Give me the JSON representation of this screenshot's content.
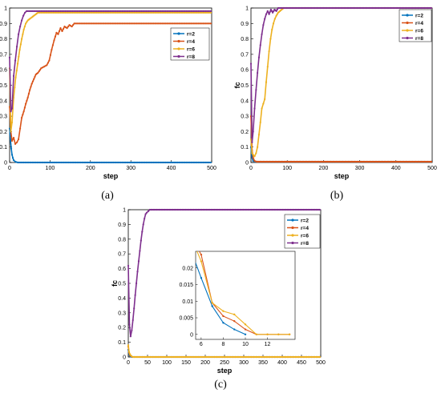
{
  "colors": {
    "r2": "#0072BD",
    "r4": "#D95319",
    "r6": "#EDB120",
    "r8": "#7E2F8E"
  },
  "chart_data": [
    {
      "panel": "(a)",
      "type": "line",
      "xlabel": "step",
      "ylabel": "fc",
      "xlim": [
        0,
        500
      ],
      "ylim": [
        0,
        1
      ],
      "xticks": [
        0,
        100,
        200,
        300,
        400,
        500
      ],
      "yticks": [
        0,
        0.1,
        0.2,
        0.3,
        0.4,
        0.5,
        0.6,
        0.7,
        0.8,
        0.9,
        1
      ],
      "legend": "top-right",
      "series": [
        {
          "name": "r=2",
          "color": "r2",
          "points": [
            [
              0,
              0.22
            ],
            [
              2,
              0.15
            ],
            [
              4,
              0.09
            ],
            [
              6,
              0.05
            ],
            [
              8,
              0.03
            ],
            [
              10,
              0.015
            ],
            [
              14,
              0.005
            ],
            [
              20,
              0
            ],
            [
              500,
              0
            ]
          ]
        },
        {
          "name": "r=4",
          "color": "r4",
          "points": [
            [
              0,
              0.36
            ],
            [
              3,
              0.2
            ],
            [
              6,
              0.14
            ],
            [
              10,
              0.16
            ],
            [
              14,
              0.12
            ],
            [
              18,
              0.13
            ],
            [
              22,
              0.15
            ],
            [
              26,
              0.22
            ],
            [
              30,
              0.29
            ],
            [
              35,
              0.33
            ],
            [
              40,
              0.38
            ],
            [
              45,
              0.42
            ],
            [
              50,
              0.47
            ],
            [
              55,
              0.51
            ],
            [
              60,
              0.54
            ],
            [
              65,
              0.57
            ],
            [
              70,
              0.58
            ],
            [
              78,
              0.61
            ],
            [
              85,
              0.62
            ],
            [
              92,
              0.63
            ],
            [
              98,
              0.66
            ],
            [
              104,
              0.73
            ],
            [
              110,
              0.79
            ],
            [
              116,
              0.84
            ],
            [
              120,
              0.83
            ],
            [
              126,
              0.87
            ],
            [
              130,
              0.85
            ],
            [
              136,
              0.88
            ],
            [
              142,
              0.87
            ],
            [
              148,
              0.89
            ],
            [
              154,
              0.88
            ],
            [
              160,
              0.9
            ],
            [
              165,
              0.9
            ],
            [
              500,
              0.9
            ]
          ]
        },
        {
          "name": "r=6",
          "color": "r6",
          "points": [
            [
              0,
              0.61
            ],
            [
              3,
              0.2
            ],
            [
              6,
              0.26
            ],
            [
              10,
              0.42
            ],
            [
              15,
              0.55
            ],
            [
              20,
              0.64
            ],
            [
              25,
              0.73
            ],
            [
              30,
              0.8
            ],
            [
              35,
              0.86
            ],
            [
              40,
              0.9
            ],
            [
              45,
              0.92
            ],
            [
              50,
              0.93
            ],
            [
              55,
              0.94
            ],
            [
              60,
              0.95
            ],
            [
              65,
              0.96
            ],
            [
              70,
              0.97
            ],
            [
              75,
              0.97
            ],
            [
              500,
              0.97
            ]
          ]
        },
        {
          "name": "r=8",
          "color": "r8",
          "points": [
            [
              0,
              0.68
            ],
            [
              3,
              0.33
            ],
            [
              6,
              0.35
            ],
            [
              10,
              0.56
            ],
            [
              14,
              0.66
            ],
            [
              18,
              0.75
            ],
            [
              22,
              0.83
            ],
            [
              26,
              0.88
            ],
            [
              30,
              0.92
            ],
            [
              34,
              0.95
            ],
            [
              38,
              0.97
            ],
            [
              42,
              0.98
            ],
            [
              500,
              0.98
            ]
          ]
        }
      ]
    },
    {
      "panel": "(b)",
      "type": "line",
      "xlabel": "step",
      "ylabel": "fc",
      "xlim": [
        0,
        500
      ],
      "ylim": [
        0,
        1
      ],
      "xticks": [
        0,
        100,
        200,
        300,
        400,
        500
      ],
      "yticks": [
        0,
        0.1,
        0.2,
        0.3,
        0.4,
        0.5,
        0.6,
        0.7,
        0.8,
        0.9,
        1
      ],
      "legend": "top-right",
      "series": [
        {
          "name": "r=2",
          "color": "r2",
          "points": [
            [
              0,
              0.1
            ],
            [
              3,
              0.03
            ],
            [
              6,
              0.01
            ],
            [
              10,
              0.005
            ],
            [
              500,
              0.005
            ]
          ]
        },
        {
          "name": "r=4",
          "color": "r4",
          "points": [
            [
              0,
              0.3
            ],
            [
              3,
              0.08
            ],
            [
              6,
              0.03
            ],
            [
              10,
              0.01
            ],
            [
              16,
              0.005
            ],
            [
              500,
              0.005
            ]
          ]
        },
        {
          "name": "r=6",
          "color": "r6",
          "points": [
            [
              0,
              0.15
            ],
            [
              3,
              0.06
            ],
            [
              6,
              0.05
            ],
            [
              10,
              0.04
            ],
            [
              14,
              0.06
            ],
            [
              18,
              0.1
            ],
            [
              22,
              0.18
            ],
            [
              26,
              0.26
            ],
            [
              30,
              0.35
            ],
            [
              34,
              0.38
            ],
            [
              38,
              0.41
            ],
            [
              42,
              0.52
            ],
            [
              46,
              0.62
            ],
            [
              50,
              0.72
            ],
            [
              54,
              0.8
            ],
            [
              58,
              0.86
            ],
            [
              62,
              0.9
            ],
            [
              66,
              0.93
            ],
            [
              70,
              0.95
            ],
            [
              75,
              0.97
            ],
            [
              80,
              0.98
            ],
            [
              85,
              0.99
            ],
            [
              90,
              1.0
            ],
            [
              500,
              1.0
            ]
          ]
        },
        {
          "name": "r=8",
          "color": "r8",
          "points": [
            [
              0,
              0.64
            ],
            [
              3,
              0.13
            ],
            [
              6,
              0.2
            ],
            [
              10,
              0.35
            ],
            [
              14,
              0.47
            ],
            [
              18,
              0.58
            ],
            [
              22,
              0.68
            ],
            [
              26,
              0.76
            ],
            [
              30,
              0.83
            ],
            [
              34,
              0.89
            ],
            [
              38,
              0.93
            ],
            [
              42,
              0.96
            ],
            [
              46,
              0.98
            ],
            [
              50,
              0.96
            ],
            [
              55,
              0.99
            ],
            [
              60,
              0.97
            ],
            [
              65,
              0.99
            ],
            [
              70,
              0.98
            ],
            [
              75,
              1.0
            ],
            [
              80,
              1.0
            ],
            [
              500,
              1.0
            ]
          ]
        }
      ]
    },
    {
      "panel": "(c)",
      "type": "line",
      "xlabel": "step",
      "ylabel": "fc",
      "xlim": [
        0,
        500
      ],
      "ylim": [
        0,
        1
      ],
      "xticks": [
        0,
        50,
        100,
        150,
        200,
        250,
        300,
        350,
        400,
        450,
        500
      ],
      "yticks": [
        0,
        0.1,
        0.2,
        0.3,
        0.4,
        0.5,
        0.6,
        0.7,
        0.8,
        0.9,
        1
      ],
      "legend": "top-right",
      "series": [
        {
          "name": "r=2",
          "color": "r2",
          "points": [
            [
              0,
              0.05
            ],
            [
              2,
              0.02
            ],
            [
              4,
              0.01
            ],
            [
              6,
              0.005
            ],
            [
              8,
              0.002
            ],
            [
              10,
              0
            ],
            [
              500,
              0
            ]
          ]
        },
        {
          "name": "r=4",
          "color": "r4",
          "points": [
            [
              0,
              0.07
            ],
            [
              2,
              0.03
            ],
            [
              4,
              0.015
            ],
            [
              6,
              0.01
            ],
            [
              8,
              0.004
            ],
            [
              12,
              0
            ],
            [
              500,
              0
            ]
          ]
        },
        {
          "name": "r=6",
          "color": "r6",
          "points": [
            [
              0,
              0.08
            ],
            [
              2,
              0.035
            ],
            [
              4,
              0.02
            ],
            [
              6,
              0.012
            ],
            [
              8,
              0.006
            ],
            [
              12,
              0
            ],
            [
              500,
              0
            ]
          ]
        },
        {
          "name": "r=8",
          "color": "r8",
          "points": [
            [
              0,
              0.62
            ],
            [
              3,
              0.22
            ],
            [
              6,
              0.14
            ],
            [
              9,
              0.18
            ],
            [
              12,
              0.25
            ],
            [
              15,
              0.33
            ],
            [
              18,
              0.42
            ],
            [
              21,
              0.5
            ],
            [
              24,
              0.58
            ],
            [
              27,
              0.65
            ],
            [
              30,
              0.72
            ],
            [
              33,
              0.79
            ],
            [
              36,
              0.85
            ],
            [
              39,
              0.9
            ],
            [
              42,
              0.94
            ],
            [
              45,
              0.97
            ],
            [
              48,
              0.98
            ],
            [
              52,
              0.99
            ],
            [
              56,
              1.0
            ],
            [
              500,
              1.0
            ]
          ]
        }
      ],
      "inset": {
        "xlim": [
          5.5,
          14.5
        ],
        "ylim": [
          -0.0015,
          0.025
        ],
        "xticks": [
          6,
          8,
          10,
          12
        ],
        "yticks": [
          0,
          0.005,
          0.01,
          0.015,
          0.02
        ],
        "series": [
          {
            "name": "r=2",
            "color": "r2",
            "points": [
              [
                5,
                0.026
              ],
              [
                6,
                0.017
              ],
              [
                7,
                0.0085
              ],
              [
                8,
                0.0035
              ],
              [
                9,
                0.0015
              ],
              [
                10,
                0
              ]
            ]
          },
          {
            "name": "r=4",
            "color": "r4",
            "points": [
              [
                5,
                0.03
              ],
              [
                6,
                0.024
              ],
              [
                7,
                0.0095
              ],
              [
                8,
                0.0055
              ],
              [
                9,
                0.004
              ],
              [
                10,
                0.0015
              ],
              [
                11,
                0
              ],
              [
                12,
                0
              ],
              [
                13,
                0
              ],
              [
                14,
                0
              ]
            ]
          },
          {
            "name": "r=6",
            "color": "r6",
            "points": [
              [
                5,
                0.03
              ],
              [
                6,
                0.022
              ],
              [
                7,
                0.0095
              ],
              [
                8,
                0.007
              ],
              [
                9,
                0.006
              ],
              [
                10,
                0.003
              ],
              [
                11,
                0
              ],
              [
                12,
                0
              ],
              [
                13,
                0
              ],
              [
                14,
                0
              ]
            ]
          }
        ]
      }
    }
  ]
}
